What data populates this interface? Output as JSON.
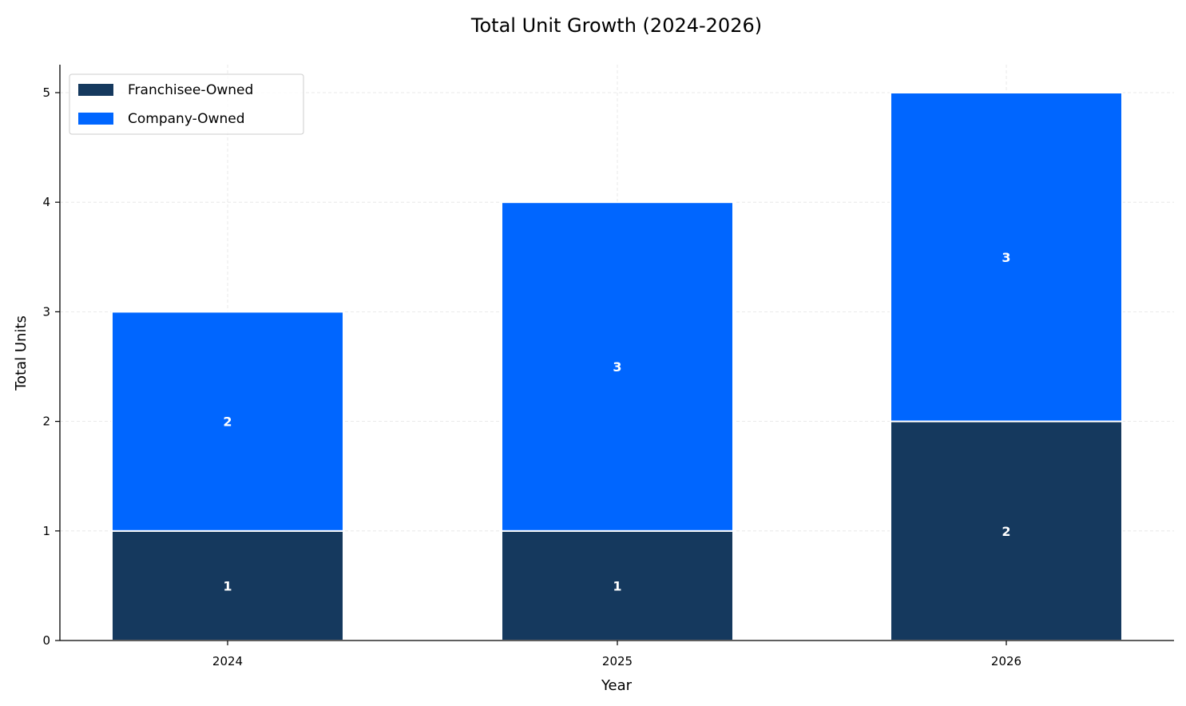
{
  "chart_data": {
    "type": "bar",
    "stacked": true,
    "title": "Total Unit Growth (2024-2026)",
    "xlabel": "Year",
    "ylabel": "Total Units",
    "categories": [
      "2024",
      "2025",
      "2026"
    ],
    "series": [
      {
        "name": "Franchisee-Owned",
        "values": [
          1,
          1,
          2
        ],
        "color": "#15395e"
      },
      {
        "name": "Company-Owned",
        "values": [
          2,
          3,
          3
        ],
        "color": "#0066ff"
      }
    ],
    "ylim": [
      0,
      5.25
    ],
    "yticks": [
      0,
      1,
      2,
      3,
      4,
      5
    ],
    "grid": true,
    "legend": "top-left"
  }
}
